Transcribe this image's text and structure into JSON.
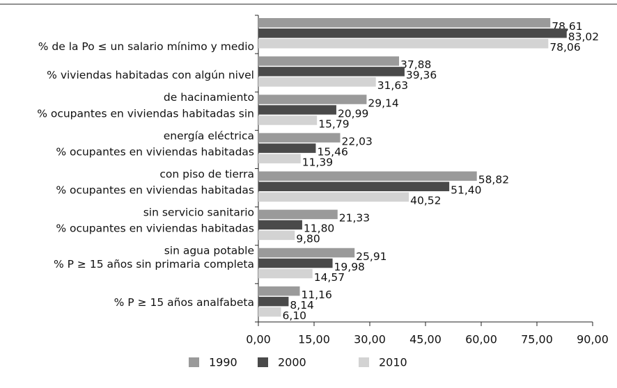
{
  "chart_data": {
    "type": "barh",
    "categories": [
      [
        "% de la Po ≤ un salario mínimo y medio"
      ],
      [
        "% viviendas habitadas con algún nivel",
        "de hacinamiento"
      ],
      [
        "% ocupantes en viviendas habitadas sin",
        "energía eléctrica"
      ],
      [
        "% ocupantes en viviendas habitadas",
        "con piso de tierra"
      ],
      [
        "% ocupantes en viviendas habitadas",
        "sin servicio sanitario"
      ],
      [
        "% ocupantes en viviendas habitadas",
        "sin agua potable"
      ],
      [
        "% P ≥ 15 años sin primaria completa"
      ],
      [
        "% P ≥ 15 años analfabeta"
      ]
    ],
    "series": [
      {
        "name": "1990",
        "color": "#9a9a9a",
        "values": [
          78.61,
          37.88,
          29.14,
          22.03,
          58.82,
          21.33,
          25.91,
          11.16
        ],
        "value_labels": [
          "78,61",
          "37,88",
          "29,14",
          "22,03",
          "58,82",
          "21,33",
          "25,91",
          "11,16"
        ]
      },
      {
        "name": "2000",
        "color": "#4a4a4a",
        "values": [
          83.02,
          39.36,
          20.99,
          15.46,
          51.4,
          11.8,
          19.98,
          8.14
        ],
        "value_labels": [
          "83,02",
          "39,36",
          "20,99",
          "15,46",
          "51,40",
          "11,80",
          "19,98",
          "8,14"
        ]
      },
      {
        "name": "2010",
        "color": "#d3d3d3",
        "values": [
          78.06,
          31.63,
          15.79,
          11.39,
          40.52,
          9.8,
          14.57,
          6.1
        ],
        "value_labels": [
          "78,06",
          "31,63",
          "15,79",
          "11,39",
          "40,52",
          "9,80",
          "14,57",
          "6,10"
        ]
      }
    ],
    "xlim": [
      0,
      90
    ],
    "xticks": [
      {
        "value": 0,
        "label": "0,00"
      },
      {
        "value": 15,
        "label": "15,00"
      },
      {
        "value": 30,
        "label": "30,00"
      },
      {
        "value": 45,
        "label": "45,00"
      },
      {
        "value": 60,
        "label": "60,00"
      },
      {
        "value": 75,
        "label": "75,00"
      },
      {
        "value": 90,
        "label": "90,00"
      }
    ],
    "legend": "bottom"
  }
}
